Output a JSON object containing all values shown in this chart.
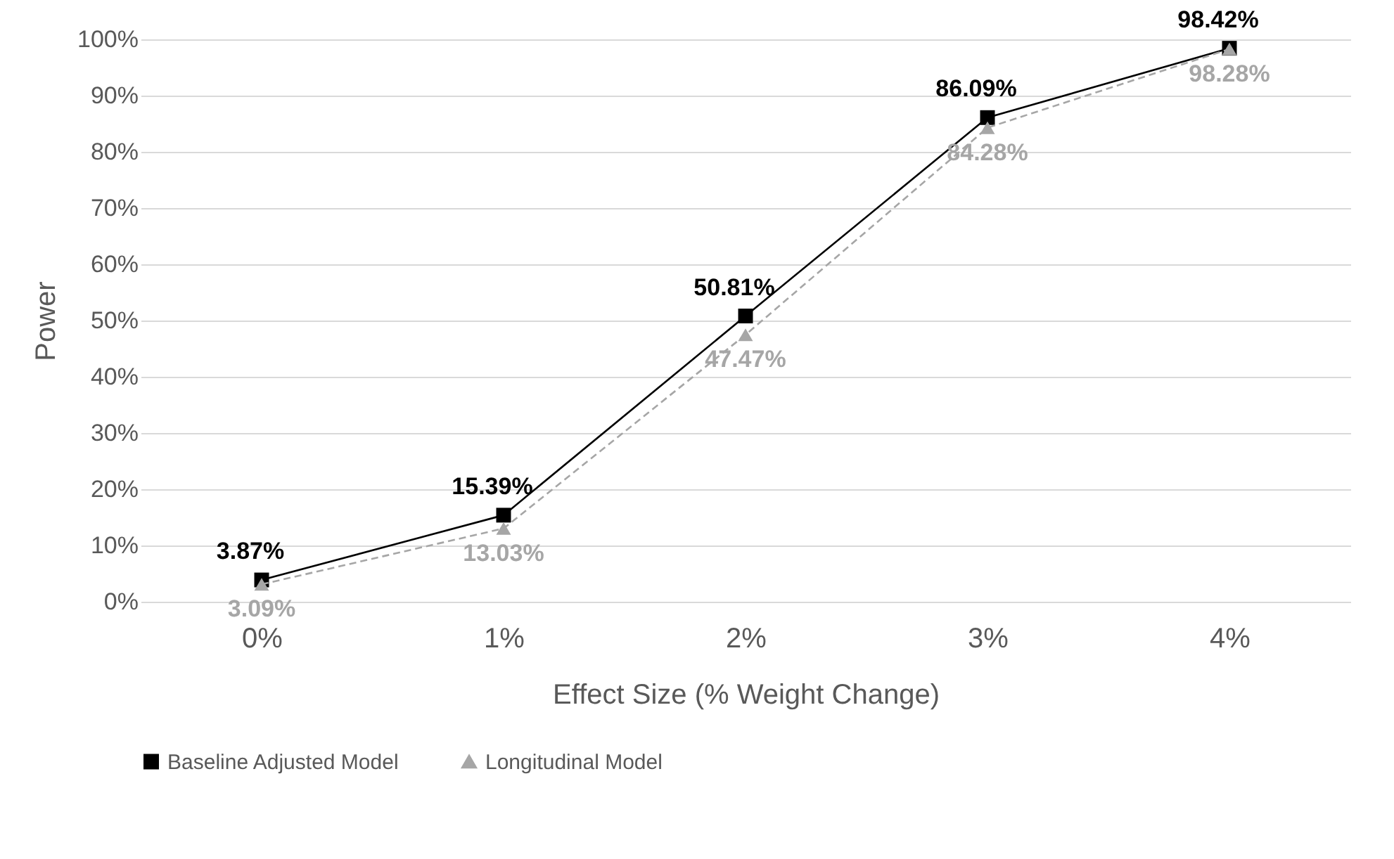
{
  "chart_data": {
    "type": "line",
    "xlabel": "Effect Size (% Weight Change)",
    "ylabel": "Power",
    "categories": [
      "0%",
      "1%",
      "2%",
      "3%",
      "4%"
    ],
    "ylim": [
      0,
      100
    ],
    "yticks": [
      {
        "value": 0,
        "label": "0%"
      },
      {
        "value": 10,
        "label": "10%"
      },
      {
        "value": 20,
        "label": "20%"
      },
      {
        "value": 30,
        "label": "30%"
      },
      {
        "value": 40,
        "label": "40%"
      },
      {
        "value": 50,
        "label": "50%"
      },
      {
        "value": 60,
        "label": "60%"
      },
      {
        "value": 70,
        "label": "70%"
      },
      {
        "value": 80,
        "label": "80%"
      },
      {
        "value": 90,
        "label": "90%"
      },
      {
        "value": 100,
        "label": "100%"
      }
    ],
    "grid": "y",
    "legend": "bottom",
    "series": [
      {
        "name": "Baseline Adjusted Model",
        "color": "#000000",
        "marker": "square",
        "line_style": "solid",
        "values": [
          3.87,
          15.39,
          50.81,
          86.09,
          98.42
        ],
        "value_labels": [
          "3.87%",
          "15.39%",
          "50.81%",
          "86.09%",
          "98.42%"
        ]
      },
      {
        "name": "Longitudinal Model",
        "color": "#a6a6a6",
        "marker": "triangle",
        "line_style": "dashed",
        "values": [
          3.09,
          13.03,
          47.47,
          84.28,
          98.28
        ],
        "value_labels": [
          "3.09%",
          "13.03%",
          "47.47%",
          "84.28%",
          "98.28%"
        ]
      }
    ]
  }
}
